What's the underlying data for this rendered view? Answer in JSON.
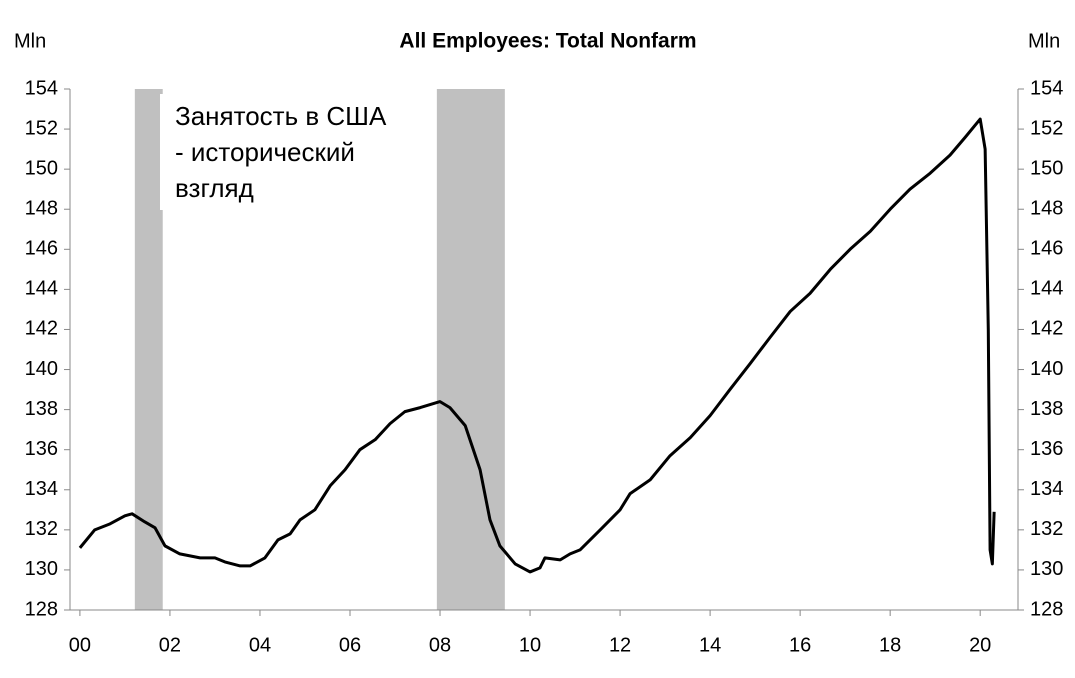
{
  "chart_data": {
    "type": "line",
    "title": "All Employees: Total Nonfarm",
    "ylabel": "Mln",
    "y2label": "Mln",
    "annotation": [
      "Занятость в США",
      "- исторический",
      "взгляд"
    ],
    "xlim": [
      -0.22,
      20.84
    ],
    "ylim": [
      128,
      154
    ],
    "xticks": [
      {
        "value": 0,
        "label": "00"
      },
      {
        "value": 2,
        "label": "02"
      },
      {
        "value": 4,
        "label": "04"
      },
      {
        "value": 6,
        "label": "06"
      },
      {
        "value": 8,
        "label": "08"
      },
      {
        "value": 10,
        "label": "10"
      },
      {
        "value": 12,
        "label": "12"
      },
      {
        "value": 14,
        "label": "14"
      },
      {
        "value": 16,
        "label": "16"
      },
      {
        "value": 18,
        "label": "18"
      },
      {
        "value": 20,
        "label": "20"
      }
    ],
    "yticks": [
      128,
      130,
      132,
      134,
      136,
      138,
      140,
      142,
      144,
      146,
      148,
      150,
      152,
      154
    ],
    "recessions": [
      [
        1.22,
        1.84
      ],
      [
        7.93,
        9.44
      ]
    ],
    "recession_color": "#c0c0c0",
    "x": [
      0,
      0.33,
      0.67,
      1.0,
      1.16,
      1.44,
      1.67,
      1.89,
      2.22,
      2.67,
      3.0,
      3.22,
      3.56,
      3.78,
      4.11,
      4.4,
      4.67,
      4.89,
      5.22,
      5.56,
      5.89,
      6.22,
      6.56,
      6.89,
      7.22,
      7.56,
      8.0,
      8.22,
      8.56,
      8.89,
      9.11,
      9.33,
      9.67,
      10.0,
      10.22,
      10.33,
      10.67,
      10.89,
      11.11,
      11.56,
      12.0,
      12.22,
      12.67,
      13.11,
      13.56,
      14.0,
      14.44,
      14.89,
      15.33,
      15.78,
      16.22,
      16.67,
      17.11,
      17.56,
      18.0,
      18.44,
      18.89,
      19.33,
      19.67,
      20.0,
      20.11,
      20.18,
      20.22,
      20.27,
      20.31
    ],
    "series": [
      {
        "color": "#000000",
        "values": [
          131.1,
          132.0,
          132.3,
          132.7,
          132.8,
          132.4,
          132.1,
          131.2,
          130.8,
          130.6,
          130.6,
          130.4,
          130.2,
          130.2,
          130.6,
          131.5,
          131.8,
          132.5,
          133.0,
          134.2,
          135.0,
          136.0,
          136.5,
          137.3,
          137.9,
          138.1,
          138.4,
          138.1,
          137.2,
          135.0,
          132.5,
          131.2,
          130.3,
          129.9,
          130.1,
          130.6,
          130.5,
          130.8,
          131.0,
          132.0,
          133.0,
          133.8,
          134.5,
          135.7,
          136.6,
          137.7,
          139.0,
          140.3,
          141.6,
          142.9,
          143.8,
          145.0,
          146.0,
          146.9,
          148.0,
          149.0,
          149.8,
          150.7,
          151.6,
          152.5,
          151.0,
          142.0,
          131.0,
          130.3,
          132.9
        ]
      }
    ]
  }
}
